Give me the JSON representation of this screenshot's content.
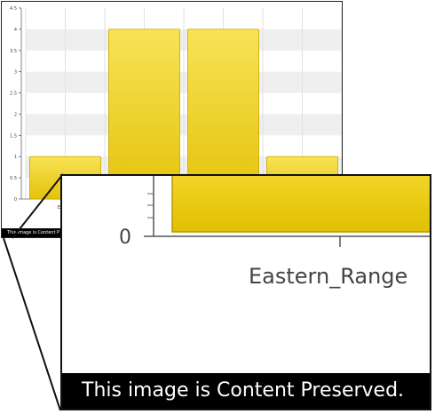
{
  "chart_data": {
    "type": "bar",
    "categories": [
      "Eastern_Range",
      "",
      "",
      ""
    ],
    "values": [
      1,
      4,
      4,
      1
    ],
    "title": "",
    "xlabel": "",
    "ylabel": "",
    "ylim": [
      0,
      4.5
    ],
    "yticks": [
      "0",
      "0.5",
      "1",
      "1.5",
      "2",
      "2.5",
      "3",
      "3.5",
      "4",
      "4.5"
    ],
    "grid": true
  },
  "inset": {
    "zero_label": "0",
    "category_label": "Eastern_Range"
  },
  "caption": "This image is Content Preserved.",
  "thumb_caption": "This image is Content P",
  "thumb_category_fragment": "Easter",
  "colors": {
    "bar_top": "#f8e356",
    "bar_bottom": "#e4c30a",
    "bar_stroke": "#c8a800",
    "grid_band": "#efefef"
  }
}
